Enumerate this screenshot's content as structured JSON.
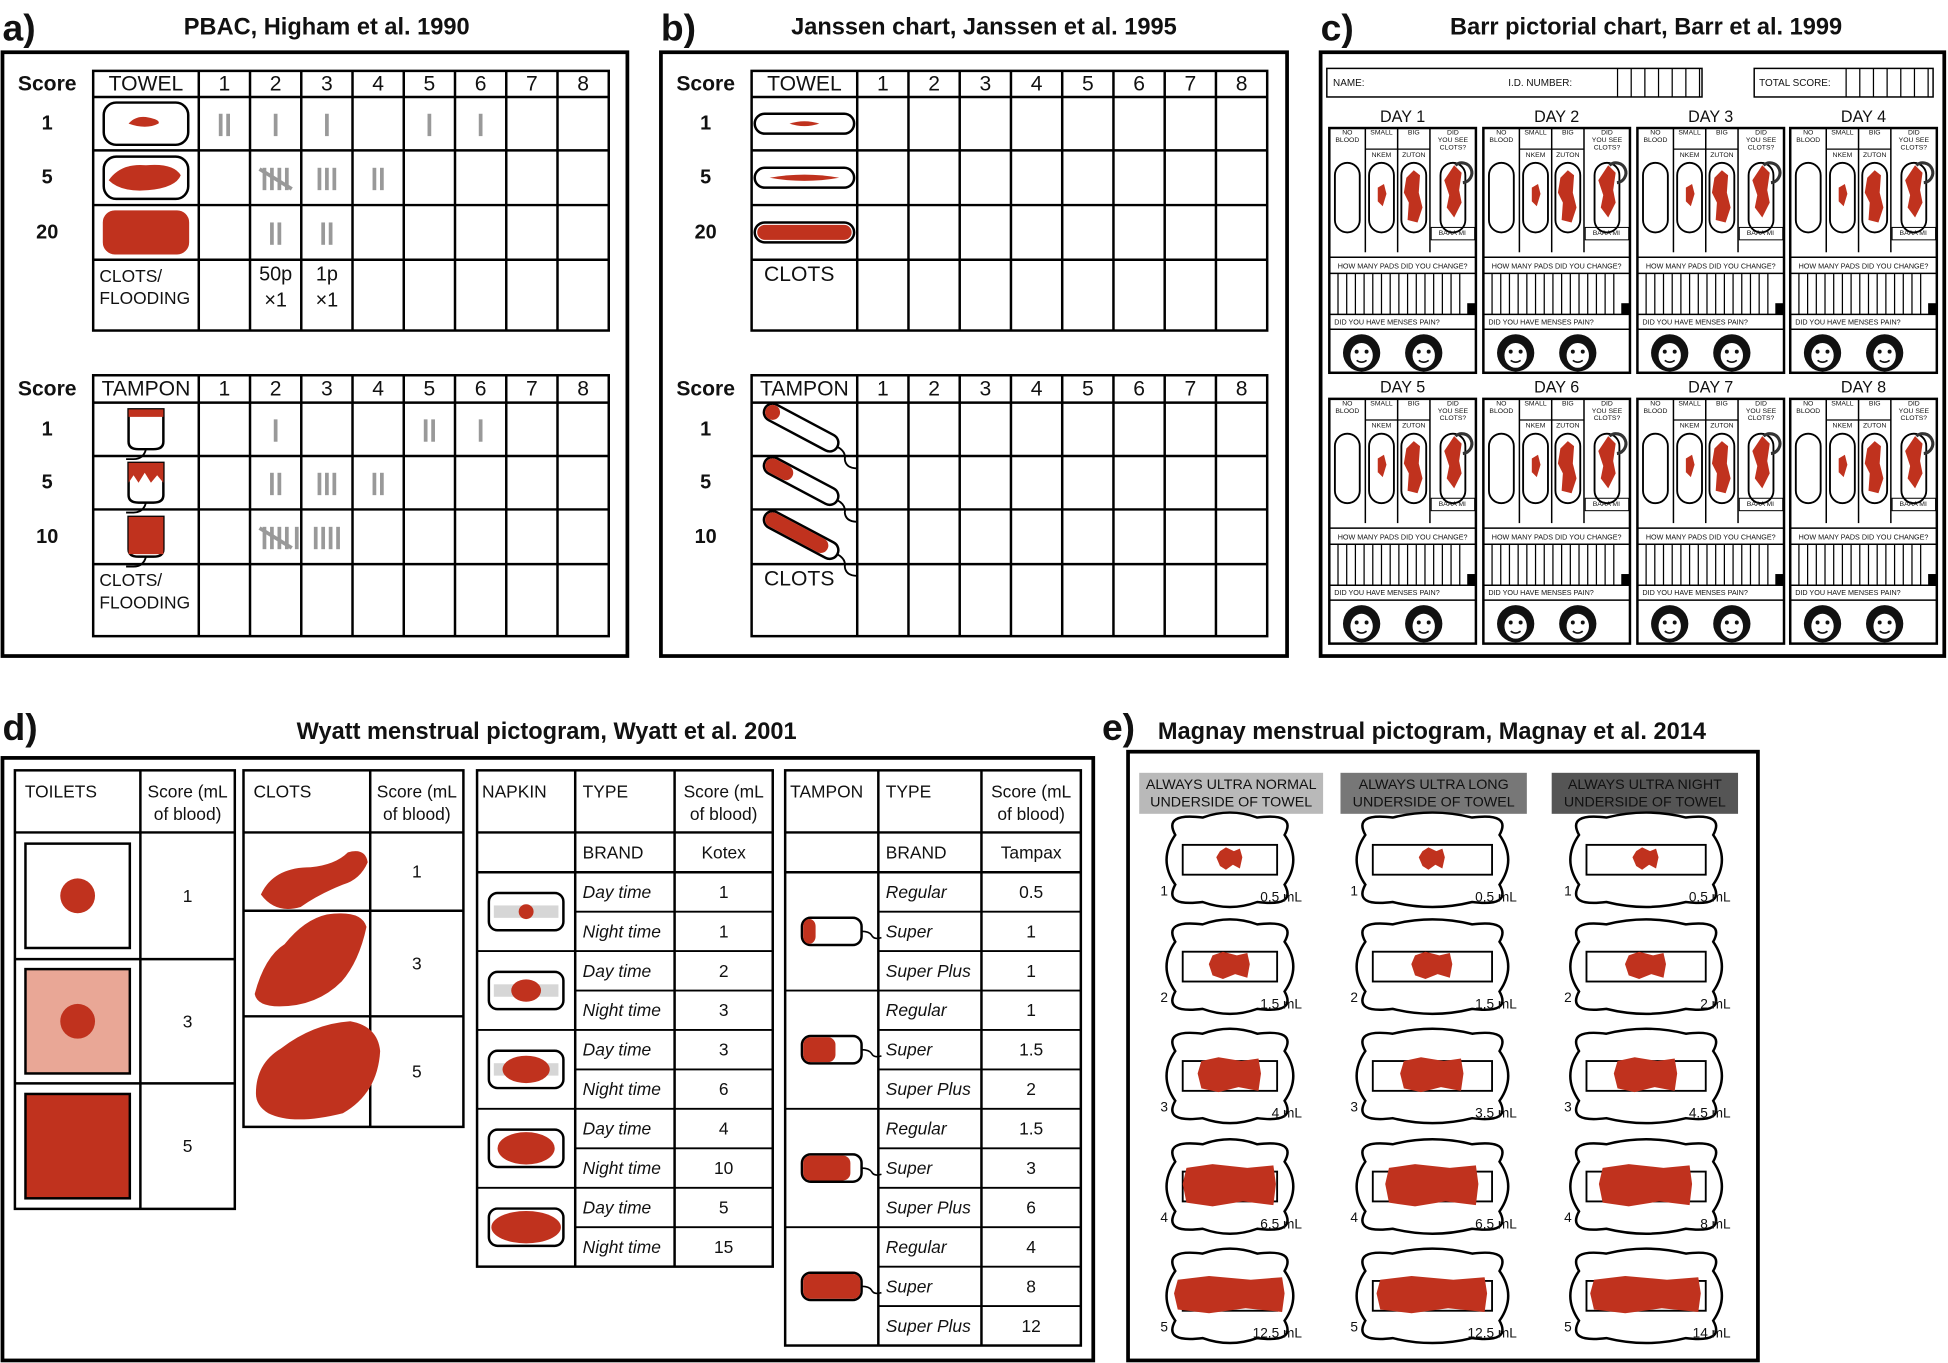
{
  "a": {
    "label": "a)",
    "title": "PBAC, Higham et al. 1990",
    "towel": {
      "header": [
        "Score",
        "TOWEL",
        1,
        2,
        3,
        4,
        5,
        6,
        7,
        8
      ],
      "scores": [
        1,
        5,
        20
      ],
      "clots": [
        "CLOTS/",
        "FLOODING"
      ],
      "notes": [
        [
          "50p",
          "×1"
        ],
        [
          "1p",
          "×1"
        ]
      ]
    },
    "tampon": {
      "header": [
        "Score",
        "TAMPON",
        1,
        2,
        3,
        4,
        5,
        6,
        7,
        8
      ],
      "scores": [
        1,
        5,
        10
      ],
      "clots": [
        "CLOTS/",
        "FLOODING"
      ]
    }
  },
  "b": {
    "label": "b)",
    "title": "Janssen chart, Janssen et al. 1995",
    "towel": {
      "header": [
        "Score",
        "TOWEL",
        1,
        2,
        3,
        4,
        5,
        6,
        7,
        8
      ],
      "scores": [
        1,
        5,
        20
      ],
      "clots": "CLOTS"
    },
    "tampon": {
      "header": [
        "Score",
        "TAMPON",
        1,
        2,
        3,
        4,
        5,
        6,
        7,
        8
      ],
      "scores": [
        1,
        5,
        10
      ],
      "clots": "CLOTS"
    }
  },
  "c": {
    "label": "c)",
    "title": "Barr pictorial chart, Barr et al. 1999",
    "name": "NAME:",
    "id": "I.D. NUMBER:",
    "total": "TOTAL SCORE:",
    "days": [
      "DAY 1",
      "DAY 2",
      "DAY 3",
      "DAY 4",
      "DAY 5",
      "DAY 6",
      "DAY 7",
      "DAY 8"
    ],
    "columns": [
      [
        "NO",
        "BLOOD"
      ],
      [
        "SMALL"
      ],
      [
        "BIG"
      ],
      [
        "DID",
        "YOU SEE",
        "CLOTS?"
      ]
    ],
    "sub": [
      "NKEM",
      "ZUTON"
    ],
    "baaa": "BAAA MI",
    "pads": "HOW MANY PADS DID YOU CHANGE?",
    "pain": "DID YOU HAVE MENSES PAIN?"
  },
  "d": {
    "label": "d)",
    "title": "Wyatt menstrual pictogram, Wyatt et al. 2001",
    "toilets": {
      "header": [
        "TOILETS",
        [
          "Score (mL",
          "of blood)"
        ]
      ],
      "scores": [
        1,
        3,
        5
      ]
    },
    "clots": {
      "header": [
        "CLOTS",
        [
          "Score (mL",
          "of blood)"
        ]
      ],
      "scores": [
        1,
        3,
        5
      ]
    },
    "napkin": {
      "header": [
        "NAPKIN",
        "TYPE",
        [
          "Score (mL",
          "of blood)"
        ]
      ],
      "brand": [
        "BRAND",
        "Kotex"
      ],
      "rows": [
        [
          "Day time",
          1
        ],
        [
          "Night time",
          1
        ],
        [
          "Day time",
          2
        ],
        [
          "Night time",
          3
        ],
        [
          "Day time",
          3
        ],
        [
          "Night time",
          6
        ],
        [
          "Day time",
          4
        ],
        [
          "Night time",
          10
        ],
        [
          "Day time",
          5
        ],
        [
          "Night time",
          15
        ]
      ]
    },
    "tampon": {
      "header": [
        "TAMPON",
        "TYPE",
        [
          "Score (mL",
          "of blood)"
        ]
      ],
      "brand": [
        "BRAND",
        "Tampax"
      ],
      "rows": [
        [
          "Regular",
          0.5
        ],
        [
          "Super",
          1
        ],
        [
          "Super Plus",
          1
        ],
        [
          "Regular",
          1
        ],
        [
          "Super",
          1.5
        ],
        [
          "Super Plus",
          2
        ],
        [
          "Regular",
          1.5
        ],
        [
          "Super",
          3
        ],
        [
          "Super Plus",
          6
        ],
        [
          "Regular",
          4
        ],
        [
          "Super",
          8
        ],
        [
          "Super Plus",
          12
        ]
      ]
    }
  },
  "e": {
    "label": "e)",
    "title": "Magnay menstrual pictogram, Magnay et al. 2014",
    "numbers": [
      1,
      2,
      3,
      4,
      5
    ],
    "columns": [
      {
        "header": [
          "ALWAYS ULTRA NORMAL",
          "UNDERSIDE OF TOWEL"
        ],
        "volumes": [
          "0.5 mL",
          "1.5 mL",
          "4 mL",
          "6.5 mL",
          "12.5 mL"
        ]
      },
      {
        "header": [
          "ALWAYS ULTRA LONG",
          "UNDERSIDE OF TOWEL"
        ],
        "volumes": [
          "0.5 mL",
          "1.5 mL",
          "3.5 mL",
          "6.5 mL",
          "12.5 mL"
        ]
      },
      {
        "header": [
          "ALWAYS ULTRA NIGHT",
          "UNDERSIDE OF TOWEL"
        ],
        "volumes": [
          "0.5 mL",
          "2 mL",
          "4.5 mL",
          "8 mL",
          "14 mL"
        ]
      }
    ]
  }
}
